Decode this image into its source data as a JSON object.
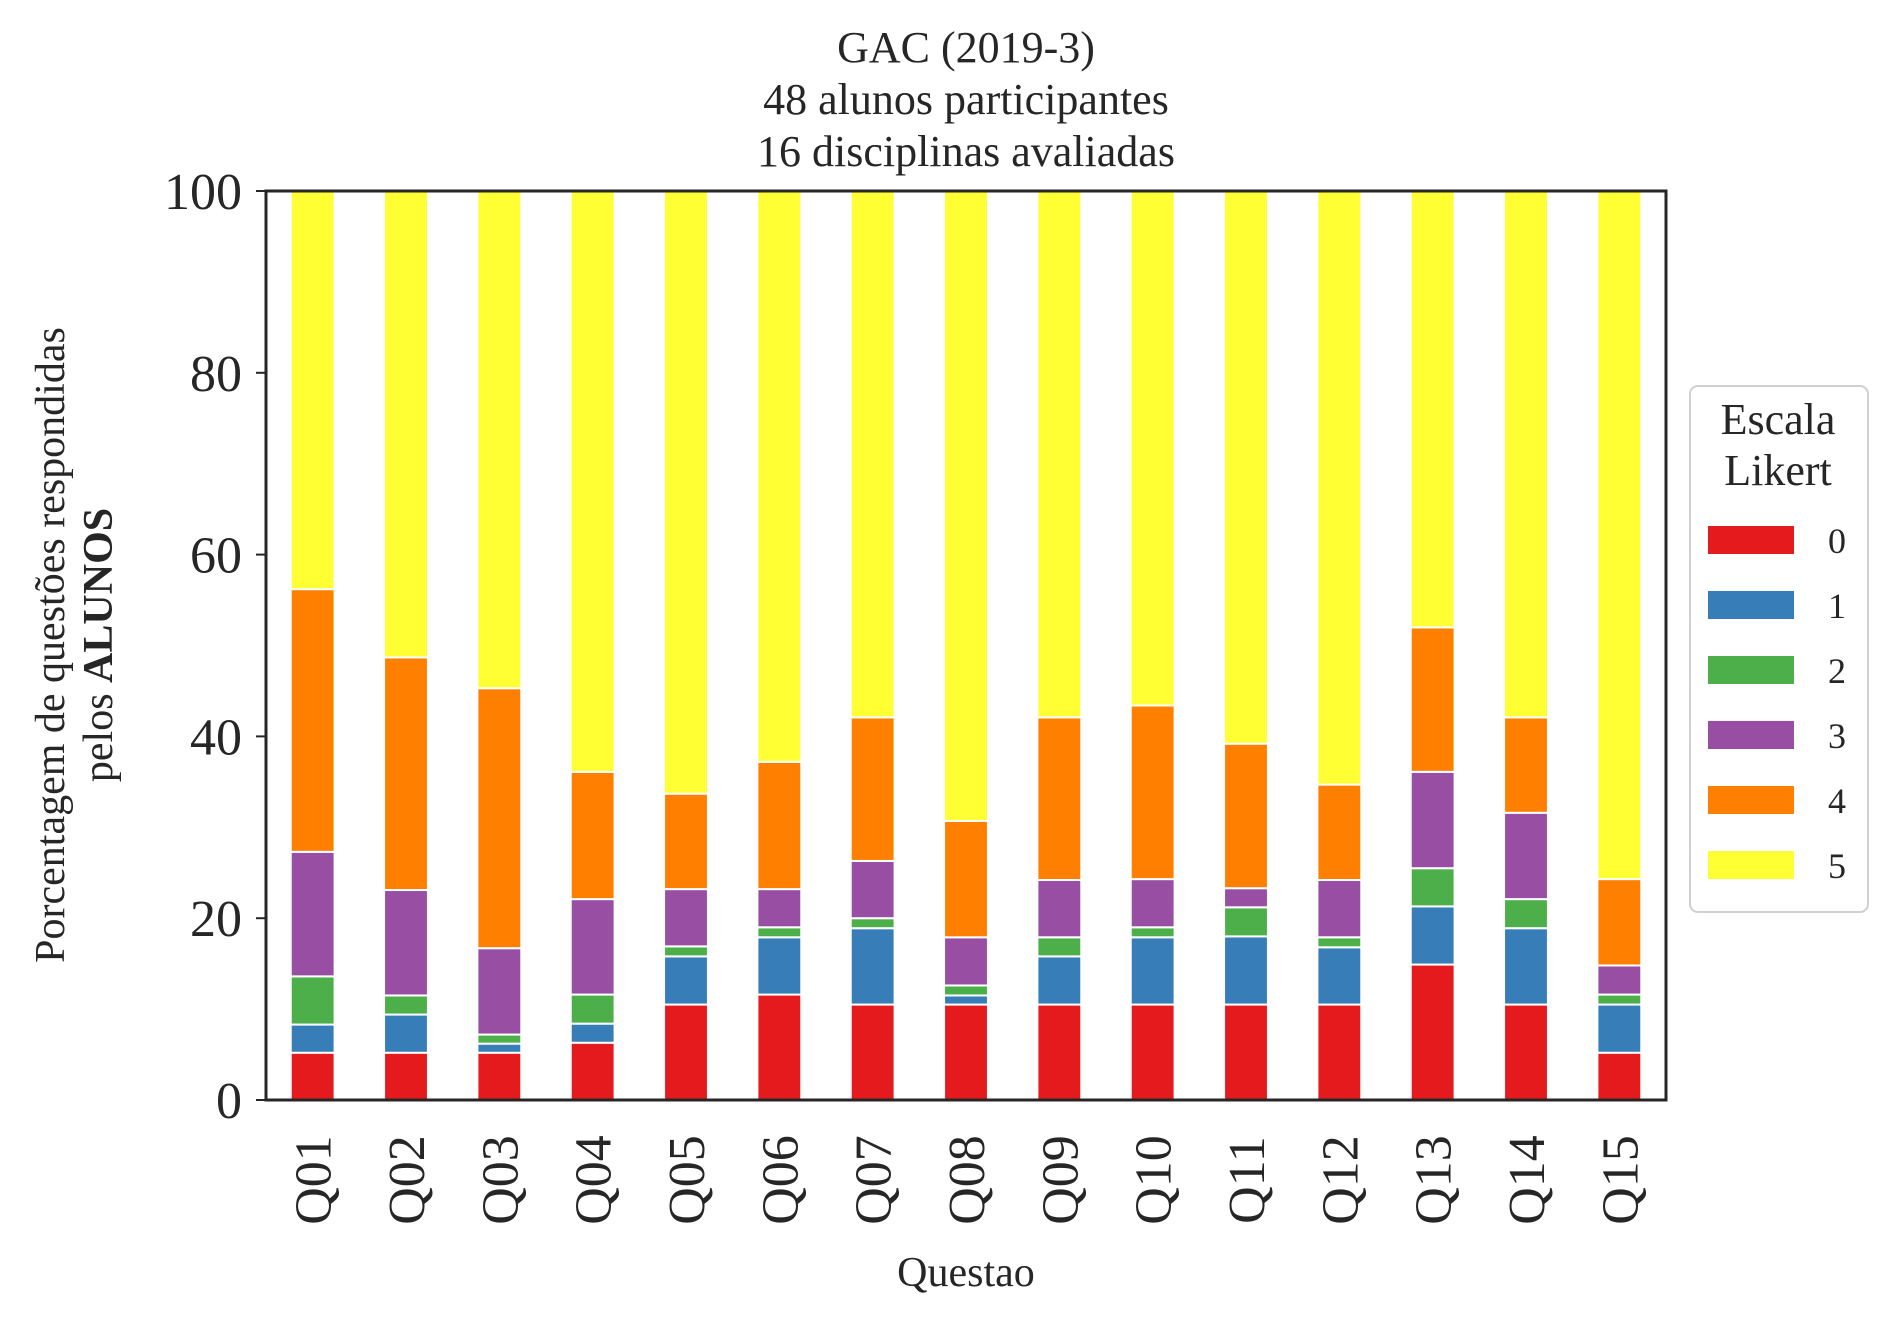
{
  "chart_data": {
    "type": "bar",
    "stacked": true,
    "title": [
      "GAC (2019-3)",
      "48 alunos participantes",
      "16 disciplinas avaliadas"
    ],
    "xlabel": "Questao",
    "ylabel": {
      "line1": "Porcentagem de questões respondidas",
      "line2_prefix": "pelos ",
      "line2_bold": "ALUNOS"
    },
    "ylim": [
      0,
      100
    ],
    "yticks": [
      0,
      20,
      40,
      60,
      80,
      100
    ],
    "grid": false,
    "legend": {
      "title": [
        "Escala",
        "Likert"
      ],
      "position": "center-right"
    },
    "categories": [
      "Q01",
      "Q02",
      "Q03",
      "Q04",
      "Q05",
      "Q06",
      "Q07",
      "Q08",
      "Q09",
      "Q10",
      "Q11",
      "Q12",
      "Q13",
      "Q14",
      "Q15"
    ],
    "series": [
      {
        "name": "0",
        "color": "#e41a1c",
        "values": [
          5.2,
          5.2,
          5.2,
          6.3,
          10.5,
          11.6,
          10.5,
          10.5,
          10.5,
          10.5,
          10.5,
          10.5,
          14.9,
          10.5,
          5.2
        ]
      },
      {
        "name": "1",
        "color": "#377eb8",
        "values": [
          3.1,
          4.2,
          1.0,
          2.1,
          5.3,
          6.3,
          8.4,
          1.0,
          5.3,
          7.4,
          7.5,
          6.3,
          6.4,
          8.4,
          5.3
        ]
      },
      {
        "name": "2",
        "color": "#4daf4a",
        "values": [
          5.3,
          2.1,
          1.0,
          3.2,
          1.1,
          1.1,
          1.1,
          1.1,
          2.1,
          1.1,
          3.2,
          1.1,
          4.2,
          3.2,
          1.1
        ]
      },
      {
        "name": "3",
        "color": "#984ea3",
        "values": [
          13.7,
          11.6,
          9.5,
          10.5,
          6.3,
          4.2,
          6.3,
          5.3,
          6.3,
          5.3,
          2.1,
          6.3,
          10.6,
          9.5,
          3.2
        ]
      },
      {
        "name": "4",
        "color": "#ff7f00",
        "values": [
          28.9,
          25.6,
          28.6,
          14.0,
          10.5,
          14.0,
          15.8,
          12.8,
          17.9,
          19.1,
          15.9,
          10.5,
          15.9,
          10.5,
          9.5
        ]
      },
      {
        "name": "5",
        "color": "#ffff33",
        "values": [
          43.8,
          51.3,
          54.7,
          63.9,
          66.3,
          62.8,
          57.9,
          69.3,
          57.9,
          56.6,
          60.8,
          65.3,
          48.0,
          57.9,
          75.7
        ]
      }
    ]
  }
}
